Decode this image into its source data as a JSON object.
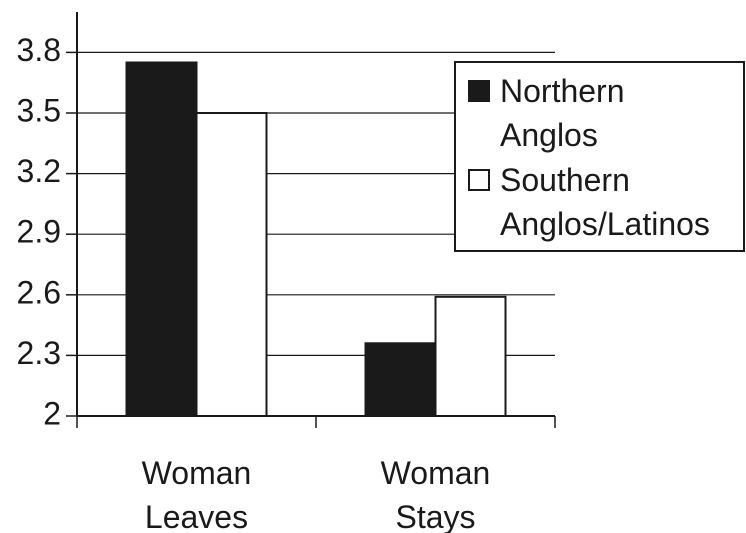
{
  "chart_data": {
    "type": "bar",
    "categories": [
      "Woman Leaves",
      "Woman Stays"
    ],
    "series": [
      {
        "name": "Northern Anglos",
        "color": "#1a1a1a",
        "values": [
          3.75,
          2.36
        ]
      },
      {
        "name": "Southern Anglos/Latinos",
        "color": "#ffffff",
        "values": [
          3.5,
          2.59
        ]
      }
    ],
    "ylim": [
      2,
      4
    ],
    "yticks": [
      2,
      2.3,
      2.6,
      2.9,
      3.2,
      3.5,
      3.8
    ],
    "grid": true,
    "legend": "upper right"
  }
}
